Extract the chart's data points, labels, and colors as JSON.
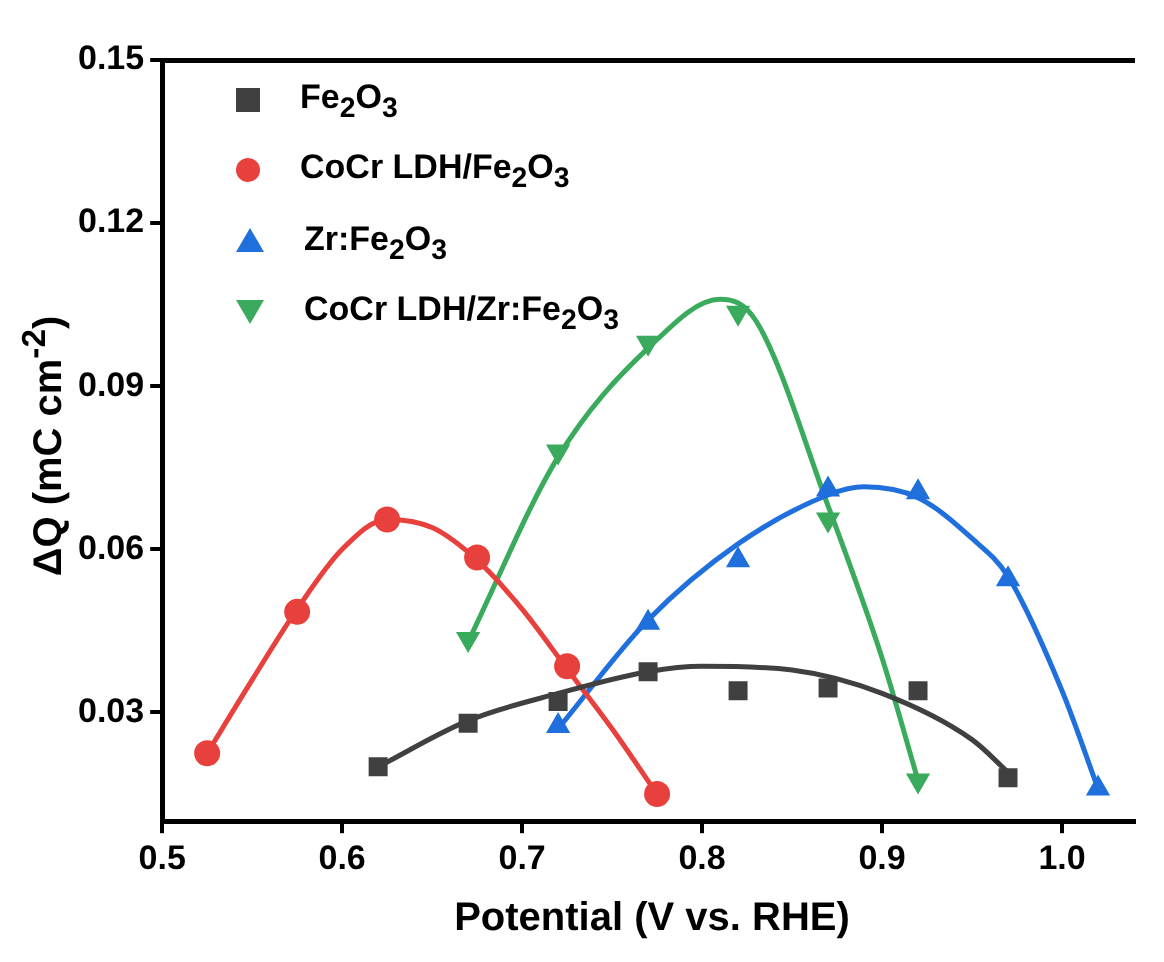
{
  "chart_data": {
    "type": "scatter",
    "xlabel": "Potential (V vs. RHE)",
    "ylabel": "ΔQ (mC cm$^{-2}$)",
    "xlim": [
      0.5,
      1.04
    ],
    "ylim": [
      0.01,
      0.15
    ],
    "xticks": [
      0.5,
      0.6,
      0.7,
      0.8,
      0.9,
      {
        "value": 1.0,
        "label": "1.0"
      }
    ],
    "yticks": [
      0.03,
      0.06,
      0.09,
      0.12,
      0.15
    ],
    "grid": false,
    "legend": "top left",
    "series": [
      {
        "name": "Fe$_{2}$O$_{3}$",
        "marker": "square",
        "color": "#404040",
        "x": [
          0.62,
          0.67,
          0.72,
          0.77,
          0.82,
          0.87,
          0.92,
          0.97
        ],
        "values": [
          0.02,
          0.028,
          0.032,
          0.0375,
          0.034,
          0.0345,
          0.034,
          0.018
        ]
      },
      {
        "name": "CoCr LDH/Fe$_{2}$O$_{3}$",
        "marker": "circle",
        "color": "#e8403c",
        "x": [
          0.525,
          0.575,
          0.625,
          0.675,
          0.725,
          0.775
        ],
        "values": [
          0.0225,
          0.0485,
          0.0655,
          0.0585,
          0.0385,
          0.015
        ]
      },
      {
        "name": "Zr:Fe$_{2}$O$_{3}$",
        "marker": "triangle",
        "color": "#1f6fdc",
        "x": [
          0.72,
          0.77,
          0.82,
          0.87,
          0.92,
          0.97,
          1.02
        ],
        "values": [
          0.0275,
          0.0465,
          0.058,
          0.071,
          0.0705,
          0.0545,
          0.016
        ]
      },
      {
        "name": "CoCr LDH/Zr:Fe$_{2}$O$_{3}$",
        "marker": "triangle-down",
        "color": "#3aaa5c",
        "x": [
          0.67,
          0.72,
          0.77,
          0.82,
          0.87,
          0.92
        ],
        "values": [
          0.0435,
          0.078,
          0.098,
          0.1035,
          0.0655,
          0.0175
        ]
      },
      {
        "type": "line",
        "marker": "none",
        "color": "#404040",
        "x": [
          0.62,
          0.67,
          0.72,
          0.77,
          0.8,
          0.85,
          0.9,
          0.95,
          0.97
        ],
        "values": [
          0.02,
          0.0285,
          0.0335,
          0.0375,
          0.0385,
          0.0378,
          0.0335,
          0.025,
          0.019
        ]
      },
      {
        "type": "line",
        "marker": "none",
        "color": "#e8403c",
        "x": [
          0.525,
          0.55,
          0.575,
          0.6,
          0.625,
          0.65,
          0.675,
          0.7,
          0.725,
          0.75,
          0.775
        ],
        "values": [
          0.0225,
          0.036,
          0.049,
          0.06,
          0.0655,
          0.064,
          0.058,
          0.049,
          0.038,
          0.027,
          0.015
        ]
      },
      {
        "type": "line",
        "marker": "none",
        "color": "#1f6fdc",
        "x": [
          0.72,
          0.77,
          0.82,
          0.87,
          0.89,
          0.92,
          0.95,
          0.97,
          1.0,
          1.02
        ],
        "values": [
          0.027,
          0.047,
          0.061,
          0.07,
          0.0715,
          0.0695,
          0.062,
          0.055,
          0.034,
          0.016
        ]
      },
      {
        "type": "line",
        "marker": "none",
        "color": "#3aaa5c",
        "x": [
          0.67,
          0.72,
          0.77,
          0.81,
          0.83,
          0.87,
          0.9,
          0.92
        ],
        "values": [
          0.043,
          0.077,
          0.097,
          0.106,
          0.102,
          0.068,
          0.04,
          0.0175
        ]
      }
    ]
  }
}
